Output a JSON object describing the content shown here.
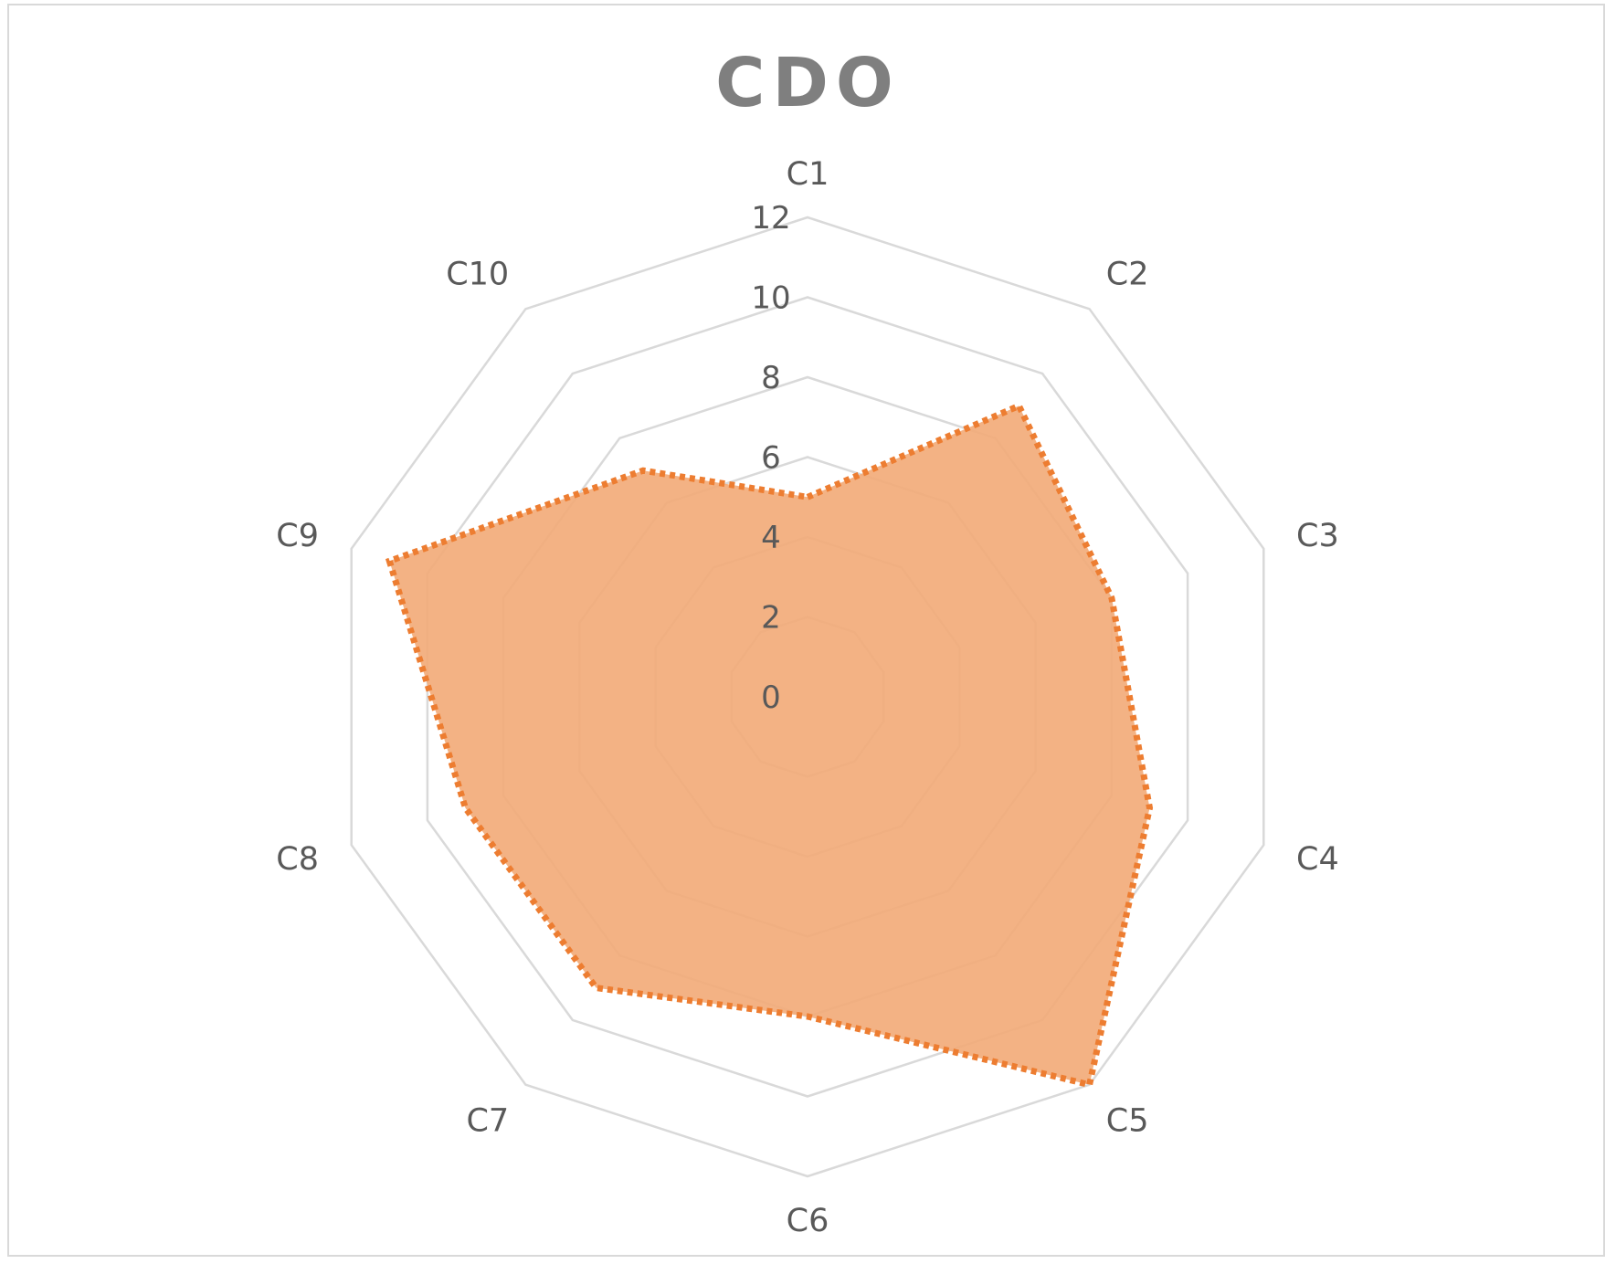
{
  "chart_data": {
    "type": "radar",
    "title": "CDO",
    "categories": [
      "C1",
      "C2",
      "C3",
      "C4",
      "C5",
      "C6",
      "C7",
      "C8",
      "C9",
      "C10"
    ],
    "series": [
      {
        "values": [
          5,
          9,
          8,
          9,
          12,
          8,
          9,
          9,
          11,
          7
        ]
      }
    ],
    "rlim": [
      0,
      12
    ],
    "ticks": [
      "0",
      "2",
      "4",
      "6",
      "8",
      "10",
      "12"
    ],
    "grid": true,
    "legend": "none",
    "colors": {
      "fill": "#f2ab7a",
      "line": "#ed7d31",
      "grid": "#d9d9d9",
      "text": "#595959",
      "title": "#7f7f7f"
    }
  }
}
